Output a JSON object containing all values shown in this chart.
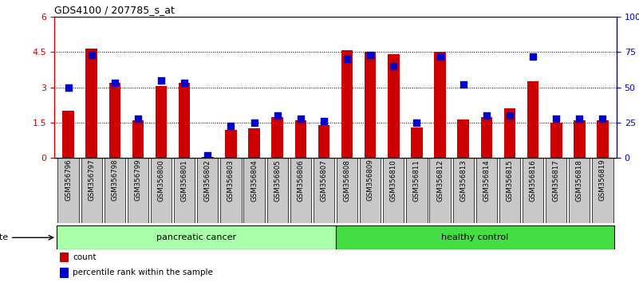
{
  "title": "GDS4100 / 207785_s_at",
  "samples": [
    "GSM356796",
    "GSM356797",
    "GSM356798",
    "GSM356799",
    "GSM356800",
    "GSM356801",
    "GSM356802",
    "GSM356803",
    "GSM356804",
    "GSM356805",
    "GSM356806",
    "GSM356807",
    "GSM356808",
    "GSM356809",
    "GSM356810",
    "GSM356811",
    "GSM356812",
    "GSM356813",
    "GSM356814",
    "GSM356815",
    "GSM356816",
    "GSM356817",
    "GSM356818",
    "GSM356819"
  ],
  "count": [
    2.0,
    4.65,
    3.2,
    1.6,
    3.05,
    3.2,
    0.05,
    1.2,
    1.25,
    1.75,
    1.6,
    1.4,
    4.6,
    4.5,
    4.4,
    1.3,
    4.5,
    1.65,
    1.75,
    2.1,
    3.25,
    1.5,
    1.6,
    1.6
  ],
  "percentile": [
    50,
    73,
    53,
    28,
    55,
    53,
    2,
    23,
    25,
    30,
    28,
    26,
    70,
    73,
    65,
    25,
    72,
    52,
    30,
    30,
    72,
    28,
    28,
    28
  ],
  "pancreatic_cancer_count": 12,
  "healthy_control_count": 12,
  "ylim_left": [
    0,
    6
  ],
  "ylim_right": [
    0,
    100
  ],
  "yticks_left": [
    0,
    1.5,
    3.0,
    4.5,
    6.0
  ],
  "ytick_labels_left": [
    "0",
    "1.5",
    "3",
    "4.5",
    "6"
  ],
  "yticks_right": [
    0,
    25,
    50,
    75,
    100
  ],
  "ytick_labels_right": [
    "0",
    "25",
    "50",
    "75",
    "100%"
  ],
  "bar_color": "#cc0000",
  "dot_color": "#0000cc",
  "bg_color": "#c8c8c8",
  "pancreatic_color": "#aaffaa",
  "healthy_color": "#44dd44",
  "legend_count_color": "#cc0000",
  "legend_dot_color": "#0000cc"
}
